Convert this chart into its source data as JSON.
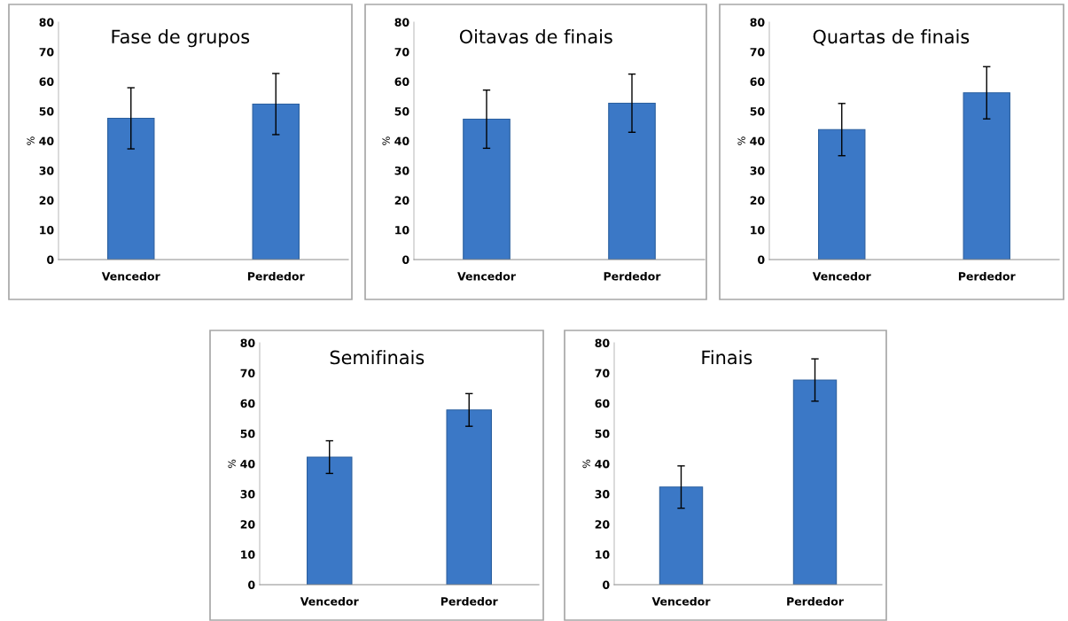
{
  "chart_data": [
    {
      "type": "bar",
      "title": "Fase de grupos",
      "ylabel": "%",
      "categories": [
        "Vencedor",
        "Perdedor"
      ],
      "values": [
        47.6,
        52.4
      ],
      "errors": [
        10.3,
        10.3
      ],
      "color": "#3b78c6",
      "ylim": [
        0,
        80
      ],
      "yticks": [
        0,
        10,
        20,
        30,
        40,
        50,
        60,
        70,
        80
      ],
      "grid": false,
      "legend": false
    },
    {
      "type": "bar",
      "title": "Oitavas de finais",
      "ylabel": "%",
      "categories": [
        "Vencedor",
        "Perdedor"
      ],
      "values": [
        47.3,
        52.7
      ],
      "errors": [
        9.8,
        9.8
      ],
      "color": "#3b78c6",
      "ylim": [
        0,
        80
      ],
      "yticks": [
        0,
        10,
        20,
        30,
        40,
        50,
        60,
        70,
        80
      ],
      "grid": false,
      "legend": false
    },
    {
      "type": "bar",
      "title": "Quartas de finais",
      "ylabel": "%",
      "categories": [
        "Vencedor",
        "Perdedor"
      ],
      "values": [
        43.8,
        56.2
      ],
      "errors": [
        8.8,
        8.8
      ],
      "color": "#3b78c6",
      "ylim": [
        0,
        80
      ],
      "yticks": [
        0,
        10,
        20,
        30,
        40,
        50,
        60,
        70,
        80
      ],
      "grid": false,
      "legend": false
    },
    {
      "type": "bar",
      "title": "Semifinais",
      "ylabel": "%",
      "categories": [
        "Vencedor",
        "Perdedor"
      ],
      "values": [
        42.2,
        57.8
      ],
      "errors": [
        5.4,
        5.4
      ],
      "color": "#3b78c6",
      "ylim": [
        0,
        80
      ],
      "yticks": [
        0,
        10,
        20,
        30,
        40,
        50,
        60,
        70,
        80
      ],
      "grid": false,
      "legend": false
    },
    {
      "type": "bar",
      "title": "Finais",
      "ylabel": "%",
      "categories": [
        "Vencedor",
        "Perdedor"
      ],
      "values": [
        32.3,
        67.7
      ],
      "errors": [
        7.0,
        7.0
      ],
      "color": "#3b78c6",
      "ylim": [
        0,
        80
      ],
      "yticks": [
        0,
        10,
        20,
        30,
        40,
        50,
        60,
        70,
        80
      ],
      "grid": false,
      "legend": false
    }
  ]
}
